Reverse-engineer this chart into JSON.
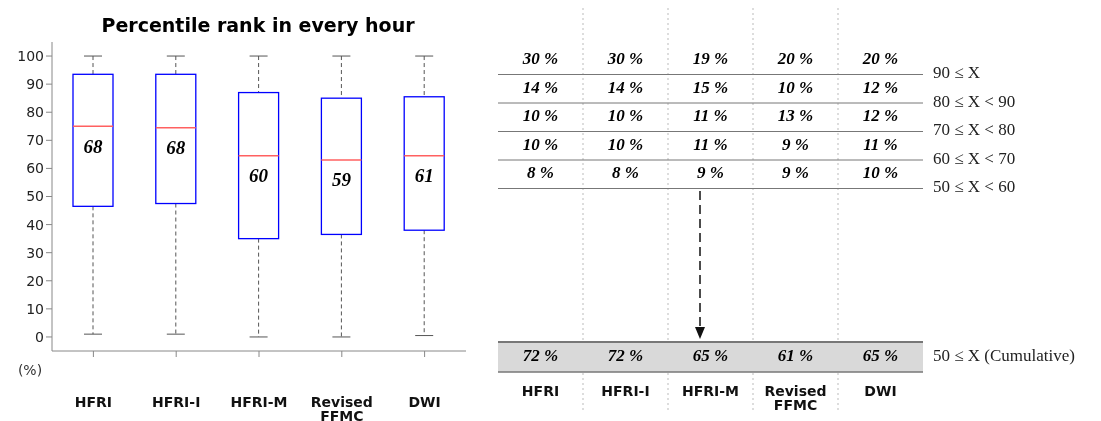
{
  "chart_data": [
    {
      "type": "box",
      "title": "Percentile rank in every hour",
      "ylabel": "(%)",
      "categories": [
        "HFRI",
        "HFRI-I",
        "HFRI-M",
        "Revised FFMC",
        "DWI"
      ],
      "color": "#0000ff",
      "ylim": [
        -5,
        105
      ],
      "yticks": [
        0,
        10,
        20,
        30,
        40,
        50,
        60,
        70,
        80,
        90,
        100
      ],
      "boxes": [
        {
          "low": 1,
          "q1": 46.5,
          "median": 75,
          "q3": 93.5,
          "high": 100
        },
        {
          "low": 1,
          "q1": 47.5,
          "median": 74.5,
          "q3": 93.5,
          "high": 100
        },
        {
          "low": 0,
          "q1": 35,
          "median": 64.5,
          "q3": 87,
          "high": 100
        },
        {
          "low": 0,
          "q1": 36.5,
          "median": 63,
          "q3": 85,
          "high": 100
        },
        {
          "low": 0.5,
          "q1": 38,
          "median": 64.5,
          "q3": 85.5,
          "high": 100
        }
      ],
      "annotations": [
        "68",
        "68",
        "60",
        "59",
        "61"
      ]
    },
    {
      "type": "other",
      "categories": [
        "HFRI",
        "HFRI-I",
        "HFRI-M",
        "Revised FFMC",
        "DWI"
      ],
      "annotations": [
        "30 %",
        "30 %",
        "19 %",
        "20 %",
        "20 %",
        "90 ≤ X",
        "14 %",
        "14 %",
        "15 %",
        "10 %",
        "12 %",
        "80 ≤ X < 90",
        "10 %",
        "10 %",
        "11 %",
        "13 %",
        "12 %",
        "70 ≤ X < 80",
        "10 %",
        "10 %",
        "11 %",
        "9 %",
        "11 %",
        "60 ≤ X < 70",
        "8 %",
        "8 %",
        "9 %",
        "9 %",
        "10 %",
        "50 ≤ X < 60",
        "72 %",
        "72 %",
        "65 %",
        "61 %",
        "65 %",
        "50 ≤ X (Cumulative)"
      ]
    }
  ]
}
